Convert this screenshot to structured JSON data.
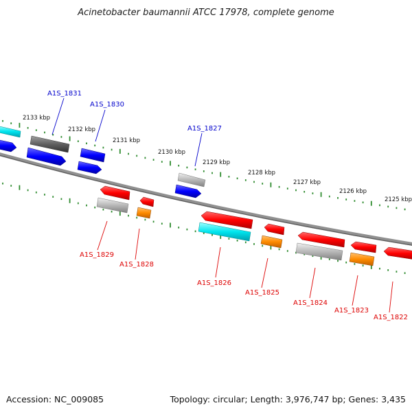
{
  "title": "Acinetobacter baumannii ATCC 17978, complete genome",
  "footer": {
    "accession": "Accession: NC_009085",
    "info": "Topology: circular; Length: 3,976,747 bp; Genes: 3,435"
  },
  "kbp_labels": [
    "2133 kbp",
    "2132 kbp",
    "2131 kbp",
    "2130 kbp",
    "2129 kbp",
    "2128 kbp",
    "2127 kbp",
    "2126 kbp",
    "2125 kbp"
  ],
  "forward_gene_labels": [
    "A1S_1831",
    "A1S_1830",
    "A1S_1827"
  ],
  "reverse_gene_labels": [
    "A1S_1829",
    "A1S_1828",
    "A1S_1826",
    "A1S_1825",
    "A1S_1824",
    "A1S_1823",
    "A1S_1822"
  ],
  "colors": {
    "forward_label": "#0000cc",
    "reverse_label": "#dd0000",
    "backbone": "#808080",
    "tick": "#2e8b2e",
    "red_gene": "#ff0000",
    "blue_gene": "#0000ff",
    "cyan_gene": "#00e5ee",
    "orange_gene": "#ff8c00",
    "grey_gene": "#b8b8b8",
    "dark_gene": "#606060"
  }
}
